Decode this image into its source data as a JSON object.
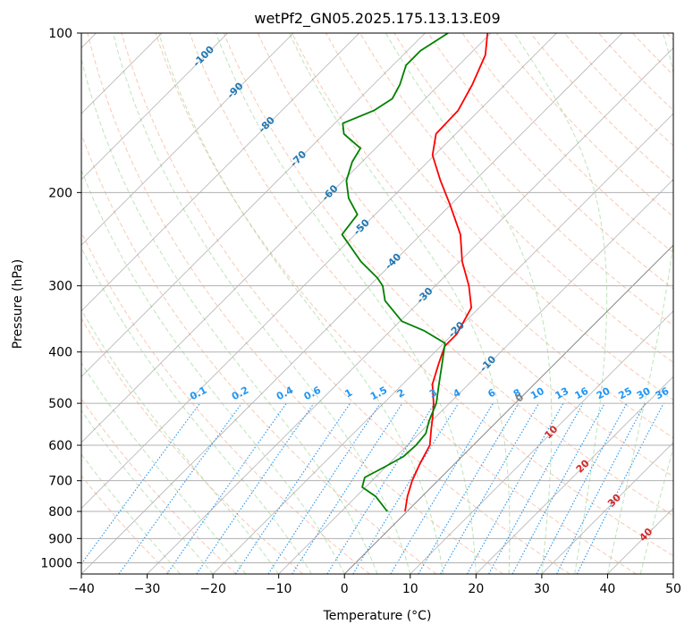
{
  "chart_data": {
    "type": "line",
    "subtype": "skew-T log-P diagram",
    "title": "wetPf2_GN05.2025.175.13.13.E09",
    "xlabel": "Temperature (°C)",
    "ylabel": "Pressure (hPa)",
    "xlim": [
      -40,
      50
    ],
    "ylim": [
      1050,
      100
    ],
    "y_scale": "log",
    "grid": true,
    "x_ticks": [
      "−40",
      "−30",
      "−20",
      "−10",
      "0",
      "10",
      "20",
      "30",
      "40",
      "50"
    ],
    "y_ticks": [
      "100",
      "200",
      "300",
      "400",
      "500",
      "600",
      "700",
      "800",
      "900",
      "1000"
    ],
    "y_tick_values": [
      100,
      200,
      300,
      400,
      500,
      600,
      700,
      800,
      900,
      1000
    ],
    "colors": {
      "temperature": "#ff0000",
      "dewpoint": "#008000",
      "dry_adiabat": "#f4a582",
      "moist_adiabat": "#a1d99b",
      "mixing_ratio": "#1f77b4",
      "isotherm": "#808080",
      "grid": "#b0b0b0",
      "isotherm_label_cold": "#1f77b4",
      "isotherm_label_zero": "#808080",
      "isotherm_label_warm": "#d62728",
      "mixing_ratio_label": "#2196f3"
    },
    "series": [
      {
        "role": "temperature",
        "color": "#ff0000",
        "points": [
          [
            800,
            -0.3
          ],
          [
            750,
            -2.2
          ],
          [
            700,
            -3.9
          ],
          [
            650,
            -5.3
          ],
          [
            600,
            -6.6
          ],
          [
            560,
            -8.8
          ],
          [
            530,
            -10.5
          ],
          [
            500,
            -12.4
          ],
          [
            460,
            -15.5
          ],
          [
            420,
            -17.7
          ],
          [
            390,
            -19.4
          ],
          [
            370,
            -19.4
          ],
          [
            330,
            -21.2
          ],
          [
            300,
            -24.9
          ],
          [
            270,
            -29.6
          ],
          [
            240,
            -34.0
          ],
          [
            210,
            -40.3
          ],
          [
            190,
            -45.2
          ],
          [
            170,
            -50.3
          ],
          [
            155,
            -53.0
          ],
          [
            140,
            -53.2
          ],
          [
            125,
            -55.0
          ],
          [
            110,
            -57.5
          ],
          [
            100,
            -60.5
          ]
        ]
      },
      {
        "role": "dewpoint",
        "color": "#008000",
        "points": [
          [
            800,
            -3.0
          ],
          [
            750,
            -7.0
          ],
          [
            720,
            -10.5
          ],
          [
            690,
            -11.6
          ],
          [
            660,
            -10.2
          ],
          [
            630,
            -8.9
          ],
          [
            600,
            -8.7
          ],
          [
            570,
            -9.0
          ],
          [
            540,
            -10.4
          ],
          [
            500,
            -12.0
          ],
          [
            460,
            -14.5
          ],
          [
            420,
            -17.2
          ],
          [
            385,
            -19.8
          ],
          [
            365,
            -24.8
          ],
          [
            350,
            -29.7
          ],
          [
            320,
            -35.4
          ],
          [
            300,
            -38.0
          ],
          [
            290,
            -40.0
          ],
          [
            270,
            -45.0
          ],
          [
            240,
            -52.0
          ],
          [
            220,
            -52.7
          ],
          [
            205,
            -56.5
          ],
          [
            190,
            -59.5
          ],
          [
            175,
            -61.5
          ],
          [
            165,
            -62.3
          ],
          [
            155,
            -67.0
          ],
          [
            148,
            -68.8
          ],
          [
            140,
            -66.0
          ],
          [
            133,
            -65.0
          ],
          [
            125,
            -66.0
          ],
          [
            115,
            -68.0
          ],
          [
            108,
            -68.0
          ],
          [
            100,
            -66.5
          ]
        ]
      }
    ],
    "isotherm_labels": [
      "-100",
      "-90",
      "-80",
      "-70",
      "-60",
      "-50",
      "-40",
      "-30",
      "-20",
      "-10",
      "0",
      "10",
      "20",
      "30",
      "40"
    ],
    "isotherm_label_values": [
      -100,
      -90,
      -80,
      -70,
      -60,
      -50,
      -40,
      -30,
      -20,
      -10,
      0,
      10,
      20,
      30,
      40
    ],
    "mixing_ratio_labels": [
      "0.1",
      "0.2",
      "0.4",
      "0.6",
      "1",
      "1.5",
      "2",
      "3",
      "4",
      "6",
      "8",
      "10",
      "13",
      "16",
      "20",
      "25",
      "30",
      "36"
    ],
    "mixing_ratio_values": [
      0.1,
      0.2,
      0.4,
      0.6,
      1,
      1.5,
      2,
      3,
      4,
      6,
      8,
      10,
      13,
      16,
      20,
      25,
      30,
      36
    ]
  }
}
